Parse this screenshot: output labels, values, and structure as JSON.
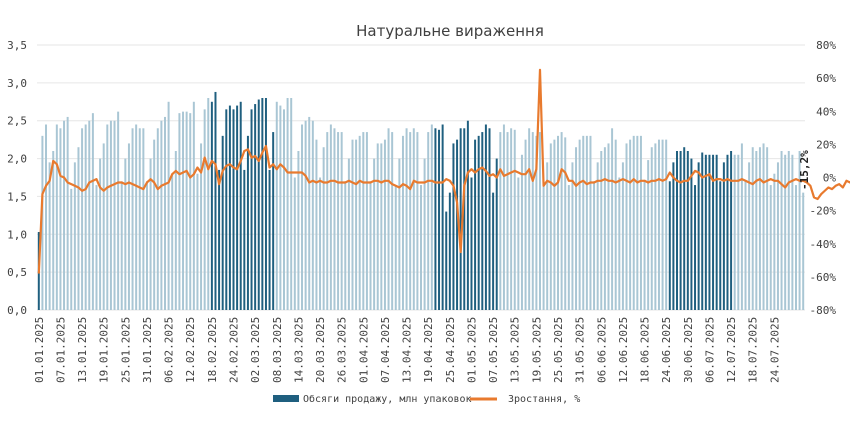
{
  "chart_data": {
    "type": "bar+line",
    "title": "Натуральне  вираження",
    "x_start": "2025-01-01",
    "x_end": "2025-07-31",
    "x_tick_labels": [
      "01.01.2025",
      "07.01.2025",
      "13.01.2025",
      "19.01.2025",
      "25.01.2025",
      "31.01.2025",
      "06.02.2025",
      "12.02.2025",
      "18.02.2025",
      "24.02.2025",
      "02.03.2025",
      "08.03.2025",
      "14.03.2025",
      "20.03.2025",
      "26.03.2025",
      "01.04.2025",
      "07.04.2025",
      "13.04.2025",
      "19.04.2025",
      "25.04.2025",
      "01.05.2025",
      "07.05.2025",
      "13.05.2025",
      "19.05.2025",
      "25.05.2025",
      "31.05.2025",
      "06.06.2025",
      "12.06.2025",
      "18.06.2025",
      "24.06.2025",
      "30.06.2025",
      "06.07.2025",
      "12.07.2025",
      "18.07.2025",
      "24.07.2025"
    ],
    "y_left": {
      "min": 0,
      "max": 3.5,
      "step": 0.5,
      "tick_labels": [
        "0,0",
        "0,5",
        "1,0",
        "1,5",
        "2,0",
        "2,5",
        "3,0",
        "3,5"
      ]
    },
    "y_right": {
      "min": -80,
      "max": 80,
      "step": 20,
      "tick_labels": [
        "-80%",
        "-60%",
        "-40%",
        "-20%",
        "0%",
        "20%",
        "40%",
        "60%",
        "80%"
      ]
    },
    "grid": true,
    "legend_position": "bottom",
    "series": [
      {
        "name": "Обсяги  продажу, млн  упаковок",
        "type": "bar",
        "axis": "left",
        "color_dark": "#1f5f7f",
        "color_light": "#a9c6d4",
        "highlight_periods": [
          "2025-02-18/2025-03-07",
          "2025-04-21/2025-05-08",
          "2025-06-25/2025-07-12"
        ],
        "values": [
          1.03,
          2.3,
          2.45,
          1.95,
          2.1,
          2.45,
          2.4,
          2.5,
          2.55,
          1.6,
          1.95,
          2.15,
          2.4,
          2.45,
          2.5,
          2.6,
          1.65,
          2.0,
          2.2,
          2.45,
          2.5,
          2.5,
          2.62,
          1.7,
          2.0,
          2.2,
          2.4,
          2.45,
          2.4,
          2.4,
          1.7,
          2.0,
          2.25,
          2.4,
          2.5,
          2.55,
          2.75,
          1.8,
          2.1,
          2.6,
          2.62,
          2.62,
          2.6,
          2.75,
          1.8,
          2.2,
          2.65,
          2.8,
          2.75,
          2.88,
          1.85,
          2.3,
          2.65,
          2.7,
          2.65,
          2.7,
          2.75,
          1.85,
          2.3,
          2.65,
          2.72,
          2.78,
          2.8,
          2.8,
          1.85,
          2.35,
          2.75,
          2.7,
          2.65,
          2.8,
          2.8,
          1.75,
          2.1,
          2.45,
          2.5,
          2.55,
          2.5,
          2.25,
          1.75,
          2.15,
          2.35,
          2.45,
          2.4,
          2.35,
          2.35,
          1.7,
          2.0,
          2.25,
          2.25,
          2.3,
          2.35,
          2.35,
          1.7,
          2.0,
          2.2,
          2.2,
          2.25,
          2.4,
          2.35,
          1.65,
          2.0,
          2.3,
          2.4,
          2.35,
          2.4,
          2.35,
          1.65,
          2.0,
          2.35,
          2.45,
          2.4,
          2.38,
          2.45,
          1.3,
          1.55,
          2.2,
          2.25,
          2.4,
          2.4,
          2.5,
          1.75,
          2.25,
          2.3,
          2.35,
          2.45,
          2.4,
          1.55,
          2.0,
          2.35,
          2.45,
          2.35,
          2.4,
          2.38,
          1.75,
          2.05,
          2.25,
          2.4,
          2.35,
          2.3,
          2.35,
          1.7,
          1.95,
          2.2,
          2.25,
          2.3,
          2.35,
          2.28,
          1.65,
          1.95,
          2.15,
          2.25,
          2.3,
          2.3,
          2.3,
          1.7,
          1.95,
          2.1,
          2.15,
          2.2,
          2.4,
          2.25,
          1.75,
          1.95,
          2.2,
          2.25,
          2.3,
          2.3,
          2.3,
          1.72,
          1.98,
          2.15,
          2.2,
          2.25,
          2.25,
          2.25,
          1.7,
          1.95,
          2.1,
          2.1,
          2.15,
          2.1,
          2.0,
          1.65,
          1.95,
          2.08,
          2.05,
          2.05,
          2.05,
          2.05,
          1.7,
          1.95,
          2.05,
          2.1,
          2.05,
          2.05,
          2.2,
          1.7,
          1.95,
          2.15,
          2.1,
          2.15,
          2.2,
          2.15,
          1.65,
          1.8,
          1.95,
          2.1,
          2.05,
          2.1,
          2.05,
          1.65,
          2.1,
          1.55
        ]
      },
      {
        "name": "Зростання, %",
        "type": "line",
        "axis": "right",
        "color": "#e87a2e",
        "values": [
          -58,
          -10,
          -5,
          -2,
          10,
          8,
          1,
          0,
          -3,
          -4,
          -5,
          -6,
          -8,
          -7,
          -3,
          -2,
          -1,
          -6,
          -8,
          -6,
          -5,
          -4,
          -3,
          -3,
          -4,
          -3,
          -4,
          -5,
          -6,
          -7,
          -3,
          -1,
          -3,
          -7,
          -5,
          -4,
          -3,
          2,
          4,
          2,
          3,
          4,
          0,
          2,
          6,
          3,
          12,
          5,
          10,
          8,
          -4,
          4,
          7,
          8,
          6,
          5,
          10,
          16,
          17,
          12,
          13,
          10,
          15,
          19,
          6,
          8,
          5,
          8,
          6,
          3,
          3,
          3,
          3,
          3,
          1,
          -3,
          -2,
          -3,
          -2,
          -3,
          -3,
          -2,
          -2,
          -3,
          -3,
          -3,
          -2,
          -3,
          -4,
          -2,
          -3,
          -3,
          -3,
          -2,
          -2,
          -3,
          -2,
          -2,
          -4,
          -5,
          -6,
          -4,
          -5,
          -7,
          -2,
          -3,
          -3,
          -3,
          -2,
          -2,
          -3,
          -3,
          -3,
          -1,
          -2,
          -5,
          -15,
          -45,
          -5,
          3,
          5,
          3,
          5,
          6,
          4,
          1,
          2,
          0,
          5,
          1,
          2,
          3,
          4,
          3,
          2,
          2,
          5,
          -2,
          5,
          65,
          -5,
          -2,
          -3,
          -5,
          -3,
          5,
          3,
          -2,
          -2,
          -5,
          -3,
          -2,
          -4,
          -3,
          -3,
          -2,
          -2,
          -1,
          -2,
          -2,
          -3,
          -2,
          -1,
          -2,
          -3,
          -1,
          -3,
          -2,
          -2,
          -3,
          -2,
          -2,
          -1,
          -2,
          -1,
          3,
          0,
          -2,
          -3,
          -2,
          -2,
          1,
          4,
          3,
          0,
          1,
          2,
          -2,
          -1,
          -1,
          -2,
          -1,
          -2,
          -2,
          -2,
          -1,
          -2,
          -3,
          -4,
          -2,
          -1,
          -3,
          -2,
          -1,
          -2,
          -2,
          -4,
          -6,
          -3,
          -2,
          -1,
          -2,
          -2,
          -3,
          -5,
          -12,
          -13,
          -10,
          -8,
          -6,
          -7,
          -5,
          -4,
          -6,
          -2,
          -3,
          0,
          0,
          -3,
          -6,
          -12,
          -12,
          -13,
          -12,
          -13,
          -13,
          -14,
          -13,
          -14,
          -15,
          -14,
          -13,
          -14,
          -13,
          -15,
          -15,
          -16
        ]
      }
    ],
    "annotations": [
      {
        "text": "-15,2%"
      }
    ]
  }
}
